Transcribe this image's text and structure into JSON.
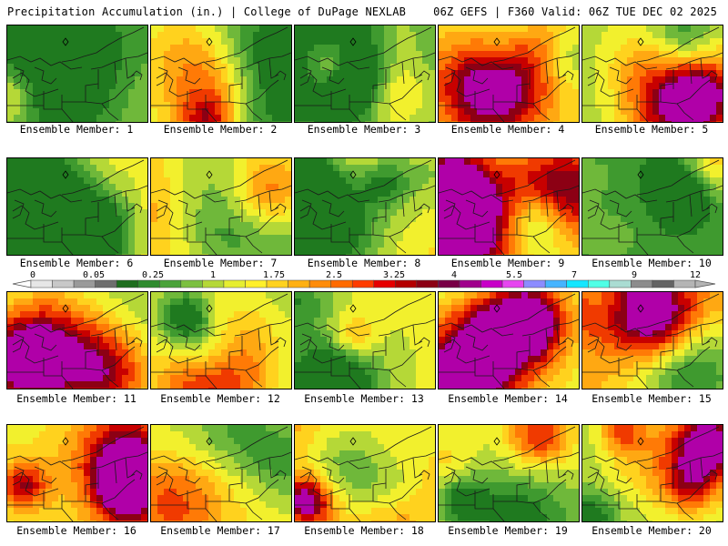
{
  "header": {
    "title": "Precipitation Accumulation (in.) | College of DuPage NEXLAB",
    "run_info": "06Z GEFS | F360 Valid: 06Z TUE DEC 02 2025"
  },
  "panels": [
    {
      "label": "Ensemble Member: 1",
      "wetness": 0.42
    },
    {
      "label": "Ensemble Member: 2",
      "wetness": 0.48
    },
    {
      "label": "Ensemble Member: 3",
      "wetness": 0.3
    },
    {
      "label": "Ensemble Member: 4",
      "wetness": 0.55
    },
    {
      "label": "Ensemble Member: 5",
      "wetness": 0.38
    },
    {
      "label": "Ensemble Member: 6",
      "wetness": 0.6
    },
    {
      "label": "Ensemble Member: 7",
      "wetness": 0.58
    },
    {
      "label": "Ensemble Member: 8",
      "wetness": 0.62
    },
    {
      "label": "Ensemble Member: 9",
      "wetness": 0.5
    },
    {
      "label": "Ensemble Member: 10",
      "wetness": 0.25
    },
    {
      "label": "Ensemble Member: 11",
      "wetness": 0.35
    },
    {
      "label": "Ensemble Member: 12",
      "wetness": 0.37
    },
    {
      "label": "Ensemble Member: 13",
      "wetness": 0.52
    },
    {
      "label": "Ensemble Member: 14",
      "wetness": 0.5
    },
    {
      "label": "Ensemble Member: 15",
      "wetness": 0.68
    },
    {
      "label": "Ensemble Member: 16",
      "wetness": 0.55
    },
    {
      "label": "Ensemble Member: 17",
      "wetness": 0.47
    },
    {
      "label": "Ensemble Member: 18",
      "wetness": 0.5
    },
    {
      "label": "Ensemble Member: 19",
      "wetness": 0.5
    },
    {
      "label": "Ensemble Member: 20",
      "wetness": 0.4
    }
  ],
  "color_scale": {
    "ticks": [
      "0",
      "0.05",
      "0.25",
      "1",
      "1.75",
      "2.5",
      "3.25",
      "4",
      "5.5",
      "7",
      "9",
      "12"
    ],
    "colors": [
      "#e6e6e6",
      "#c8c8c8",
      "#9a9a9a",
      "#6e6e6e",
      "#1e6e1e",
      "#2e8b2e",
      "#4aa33a",
      "#7cc040",
      "#b5d837",
      "#e6ee30",
      "#fff02a",
      "#ffd21e",
      "#ffb012",
      "#ff8c0a",
      "#ff6a00",
      "#ff3c00",
      "#e60000",
      "#b40000",
      "#8c0014",
      "#780046",
      "#a0008c",
      "#c800c8",
      "#e646f0",
      "#8c8cff",
      "#46b4ff",
      "#14e6ff",
      "#50ffe6",
      "#aadcd2",
      "#8c8c8c",
      "#646464",
      "#b4b4b4"
    ]
  }
}
